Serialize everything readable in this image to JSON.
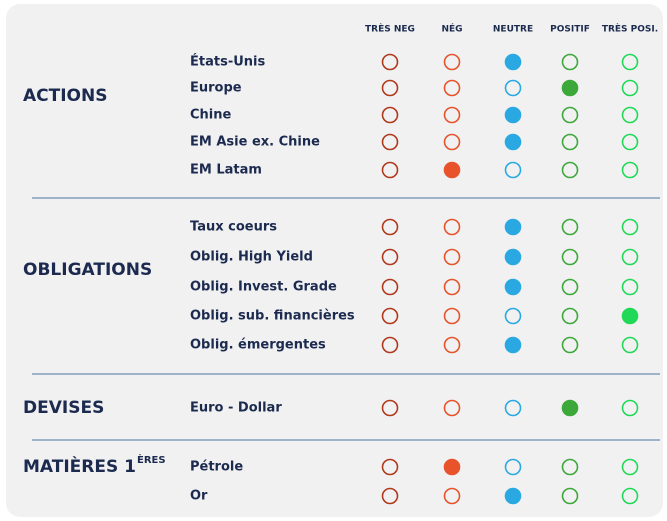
{
  "columns": [
    "TRÈS NEG",
    "NÉG",
    "NEUTRE",
    "POSITIF",
    "TRÈS POSI."
  ],
  "sections": [
    {
      "name": "ACTIONS",
      "rows": [
        {
          "label": "États-Unis",
          "view": 2
        },
        {
          "label": "Europe",
          "view": 3
        },
        {
          "label": "Chine",
          "view": 2
        },
        {
          "label": "EM Asie ex. Chine",
          "view": 2
        },
        {
          "label": "EM Latam",
          "view": 1
        }
      ]
    },
    {
      "name": "OBLIGATIONS",
      "rows": [
        {
          "label": "Taux coeurs",
          "view": 2
        },
        {
          "label": "Oblig. High Yield",
          "view": 2
        },
        {
          "label": "Oblig. Invest. Grade",
          "view": 2
        },
        {
          "label": "Oblig. sub. financières",
          "view": 4
        },
        {
          "label": "Oblig. émergentes",
          "view": 2
        }
      ]
    },
    {
      "name": "DEVISES",
      "rows": [
        {
          "label": "Euro - Dollar",
          "view": 3
        }
      ]
    },
    {
      "name": "MATIÈRES 1",
      "name_sup": "ÈRES",
      "rows": [
        {
          "label": "Pétrole",
          "view": 1
        },
        {
          "label": "Or",
          "view": 2
        }
      ]
    }
  ]
}
